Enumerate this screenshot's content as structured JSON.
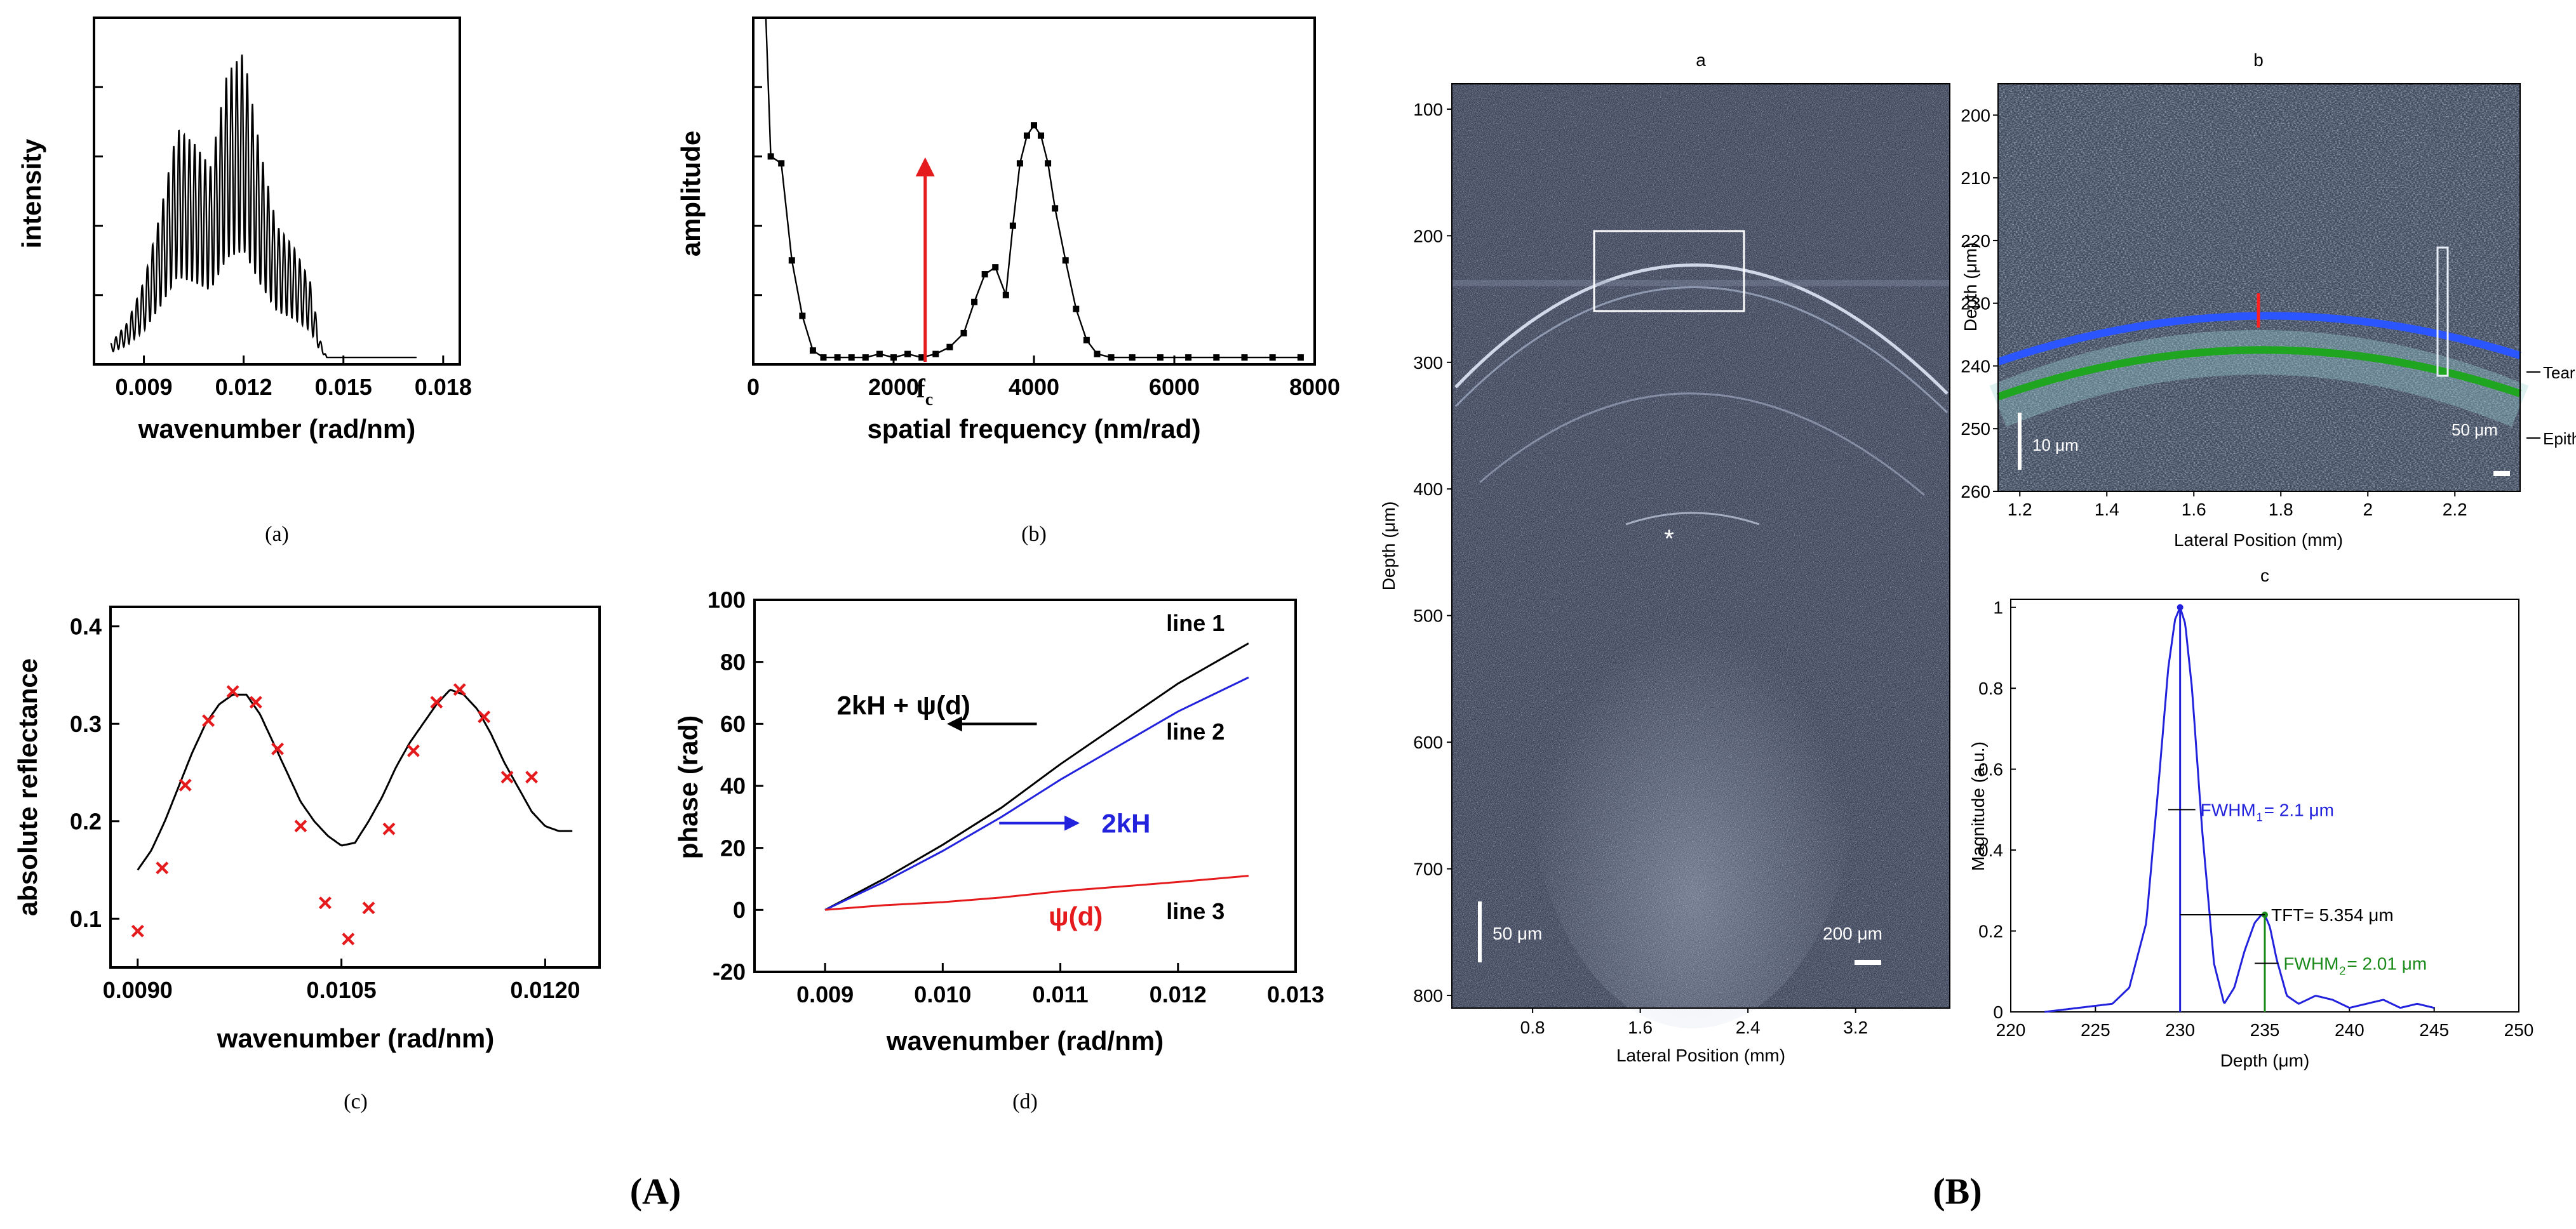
{
  "figure": {
    "label_A": "(A)",
    "label_B": "(B)",
    "colors": {
      "axis": "#000000",
      "red": "#e41a1c",
      "blue": "#2222dd",
      "green": "#1a8a1a",
      "oct_bg": "#3b4257"
    }
  },
  "chart_data": [
    {
      "id": "a",
      "type": "line",
      "caption": "(a)",
      "title": "",
      "xlabel": "wavenumber (rad/nm)",
      "ylabel": "intensity",
      "xlim": [
        0.0075,
        0.0185
      ],
      "ylim": [
        0,
        1
      ],
      "xticks": [
        "0.009",
        "0.012",
        "0.015",
        "0.018"
      ],
      "xtick_values": [
        0.009,
        0.012,
        0.015,
        0.018
      ],
      "envelope_x": [
        0.008,
        0.0085,
        0.009,
        0.0095,
        0.01,
        0.0105,
        0.011,
        0.0115,
        0.012,
        0.0125,
        0.013,
        0.0135,
        0.014,
        0.0143,
        0.0145,
        0.0172
      ],
      "envelope_y": [
        0.04,
        0.1,
        0.22,
        0.42,
        0.66,
        0.62,
        0.55,
        0.82,
        0.88,
        0.6,
        0.38,
        0.32,
        0.22,
        0.05,
        0.0,
        0.0
      ]
    },
    {
      "id": "b",
      "type": "line",
      "caption": "(b)",
      "xlabel": "spatial frequency (nm/rad)",
      "ylabel": "amplitude",
      "xlim": [
        0,
        8000
      ],
      "ylim": [
        0,
        1
      ],
      "xticks": [
        "0",
        "2000",
        "4000",
        "6000",
        "8000"
      ],
      "xtick_values": [
        0,
        2000,
        4000,
        6000,
        8000
      ],
      "x": [
        250,
        400,
        550,
        700,
        850,
        1000,
        1200,
        1400,
        1600,
        1800,
        2000,
        2200,
        2400,
        2600,
        2800,
        3000,
        3150,
        3300,
        3450,
        3600,
        3700,
        3800,
        3900,
        4000,
        4100,
        4200,
        4300,
        4450,
        4600,
        4750,
        4900,
        5100,
        5400,
        5800,
        6200,
        6600,
        7000,
        7400,
        7800
      ],
      "y": [
        0.6,
        0.58,
        0.3,
        0.14,
        0.04,
        0.02,
        0.02,
        0.02,
        0.02,
        0.03,
        0.02,
        0.03,
        0.02,
        0.03,
        0.05,
        0.09,
        0.18,
        0.26,
        0.28,
        0.2,
        0.4,
        0.58,
        0.66,
        0.69,
        0.66,
        0.58,
        0.45,
        0.3,
        0.16,
        0.07,
        0.03,
        0.02,
        0.02,
        0.02,
        0.02,
        0.02,
        0.02,
        0.02,
        0.02
      ],
      "fc_label": "f",
      "fc_sub": "c",
      "fc_value": 2450
    },
    {
      "id": "c",
      "type": "scatter",
      "caption": "(c)",
      "xlabel": "wavenumber (rad/nm)",
      "ylabel": "absolute reflectance",
      "xlim": [
        0.0088,
        0.0124
      ],
      "ylim": [
        0.05,
        0.42
      ],
      "xticks": [
        "0.0090",
        "0.0105",
        "0.0120"
      ],
      "xtick_values": [
        0.009,
        0.0105,
        0.012
      ],
      "yticks": [
        "0.1",
        "0.2",
        "0.3",
        "0.4"
      ],
      "ytick_values": [
        0.1,
        0.2,
        0.3,
        0.4
      ],
      "fit_x": [
        0.009,
        0.0091,
        0.0092,
        0.0093,
        0.0094,
        0.0095,
        0.0096,
        0.0097,
        0.0098,
        0.0099,
        0.01,
        0.0101,
        0.0102,
        0.0103,
        0.0104,
        0.0105,
        0.0106,
        0.0107,
        0.0108,
        0.0109,
        0.011,
        0.0111,
        0.0112,
        0.0113,
        0.0114,
        0.0115,
        0.0116,
        0.0117,
        0.0118,
        0.0119,
        0.012,
        0.0121,
        0.0122
      ],
      "fit_y": [
        0.15,
        0.17,
        0.2,
        0.235,
        0.27,
        0.3,
        0.32,
        0.33,
        0.33,
        0.31,
        0.28,
        0.25,
        0.22,
        0.2,
        0.185,
        0.175,
        0.178,
        0.2,
        0.225,
        0.255,
        0.28,
        0.3,
        0.32,
        0.335,
        0.33,
        0.315,
        0.29,
        0.26,
        0.235,
        0.21,
        0.195,
        0.19,
        0.19
      ],
      "points_x": [
        0.009,
        0.00918,
        0.00935,
        0.00952,
        0.0097,
        0.00987,
        0.01003,
        0.0102,
        0.01038,
        0.01055,
        0.0107,
        0.01085,
        0.01103,
        0.0112,
        0.01137,
        0.01155,
        0.01172,
        0.0119
      ],
      "points_y": [
        0.087,
        0.152,
        0.237,
        0.303,
        0.333,
        0.322,
        0.274,
        0.195,
        0.116,
        0.079,
        0.111,
        0.192,
        0.272,
        0.322,
        0.335,
        0.307,
        0.245,
        0.245
      ]
    },
    {
      "id": "d",
      "type": "line",
      "caption": "(d)",
      "xlabel": "wavenumber (rad/nm)",
      "ylabel": "phase (rad)",
      "xlim": [
        0.0084,
        0.013
      ],
      "ylim": [
        -20,
        100
      ],
      "xticks": [
        "0.009",
        "0.010",
        "0.011",
        "0.012",
        "0.013"
      ],
      "xtick_values": [
        0.009,
        0.01,
        0.011,
        0.012,
        0.013
      ],
      "yticks": [
        "-20",
        "0",
        "20",
        "40",
        "60",
        "80",
        "100"
      ],
      "ytick_values": [
        -20,
        0,
        20,
        40,
        60,
        80,
        100
      ],
      "series": [
        {
          "name": "line 1",
          "color": "#000000",
          "x": [
            0.009,
            0.0095,
            0.01,
            0.0105,
            0.011,
            0.0115,
            0.012,
            0.0126
          ],
          "y": [
            0,
            10,
            21,
            33,
            47,
            60,
            73,
            86
          ]
        },
        {
          "name": "line 2",
          "color": "#2222dd",
          "x": [
            0.009,
            0.0095,
            0.01,
            0.0105,
            0.011,
            0.0115,
            0.012,
            0.0126
          ],
          "y": [
            0,
            9,
            19,
            30,
            42,
            53,
            64,
            75
          ]
        },
        {
          "name": "line 3",
          "color": "#e41a1c",
          "x": [
            0.009,
            0.0095,
            0.01,
            0.0105,
            0.011,
            0.0115,
            0.012,
            0.0126
          ],
          "y": [
            0,
            1.5,
            2.5,
            4,
            6,
            7.5,
            9,
            11
          ]
        }
      ],
      "annotations": {
        "top": "2kH + ψ(d)",
        "mid": "2kH",
        "bottom": "ψ(d)"
      }
    },
    {
      "id": "Ba",
      "type": "heatmap",
      "title": "a",
      "xlabel": "Lateral Position (mm)",
      "ylabel": "Depth (μm)",
      "xlim": [
        0.2,
        3.9
      ],
      "ylim": [
        810,
        80
      ],
      "xticks": [
        "0.8",
        "1.6",
        "2.4",
        "3.2"
      ],
      "xtick_values": [
        0.8,
        1.6,
        2.4,
        3.2
      ],
      "yticks": [
        "100",
        "200",
        "300",
        "400",
        "500",
        "600",
        "700",
        "800"
      ],
      "ytick_values": [
        100,
        200,
        300,
        400,
        500,
        600,
        700,
        800
      ],
      "scalebars": [
        "50 μm",
        "200 μm"
      ],
      "marker": "*"
    },
    {
      "id": "Bb",
      "type": "heatmap",
      "title": "b",
      "xlabel": "Lateral Position (mm)",
      "ylabel": "Depth (μm)",
      "xlim": [
        1.15,
        2.35
      ],
      "ylim": [
        260,
        195
      ],
      "xticks": [
        "1.2",
        "1.4",
        "1.6",
        "1.8",
        "2",
        "2.2"
      ],
      "xtick_values": [
        1.2,
        1.4,
        1.6,
        1.8,
        2.0,
        2.2
      ],
      "yticks": [
        "200",
        "210",
        "220",
        "230",
        "240",
        "250",
        "260"
      ],
      "ytick_values": [
        200,
        210,
        220,
        230,
        240,
        250,
        260
      ],
      "scalebars": [
        "10 μm",
        "50 μm"
      ],
      "side_labels": [
        "Tear fi",
        "Epithe"
      ]
    },
    {
      "id": "Bc",
      "type": "line",
      "title": "c",
      "xlabel": "Depth (μm)",
      "ylabel": "Magnitude (a.u.)",
      "xlim": [
        220,
        250
      ],
      "ylim": [
        0,
        1.02
      ],
      "xticks": [
        "220",
        "225",
        "230",
        "235",
        "240",
        "245",
        "250"
      ],
      "xtick_values": [
        220,
        225,
        230,
        235,
        240,
        245,
        250
      ],
      "yticks": [
        "0",
        "0.2",
        "0.4",
        "0.6",
        "0.8",
        "1"
      ],
      "ytick_values": [
        0,
        0.2,
        0.4,
        0.6,
        0.8,
        1.0
      ],
      "x": [
        222,
        224,
        226,
        227,
        228,
        228.7,
        229.3,
        229.7,
        230,
        230.3,
        230.7,
        231.3,
        232,
        232.6,
        233.2,
        233.8,
        234.4,
        234.8,
        235,
        235.3,
        235.7,
        236.3,
        237,
        238,
        239,
        240,
        241,
        242,
        243,
        244,
        245
      ],
      "y": [
        0.0,
        0.01,
        0.02,
        0.06,
        0.22,
        0.55,
        0.85,
        0.97,
        1.0,
        0.96,
        0.8,
        0.45,
        0.12,
        0.02,
        0.06,
        0.15,
        0.22,
        0.24,
        0.24,
        0.21,
        0.13,
        0.04,
        0.02,
        0.04,
        0.03,
        0.01,
        0.02,
        0.03,
        0.01,
        0.02,
        0.01
      ],
      "annotations": [
        "FWHM",
        "1",
        "= 2.1 μm",
        "TFT= 5.354 μm",
        "FWHM",
        "2",
        "= 2.01 μm"
      ]
    }
  ]
}
